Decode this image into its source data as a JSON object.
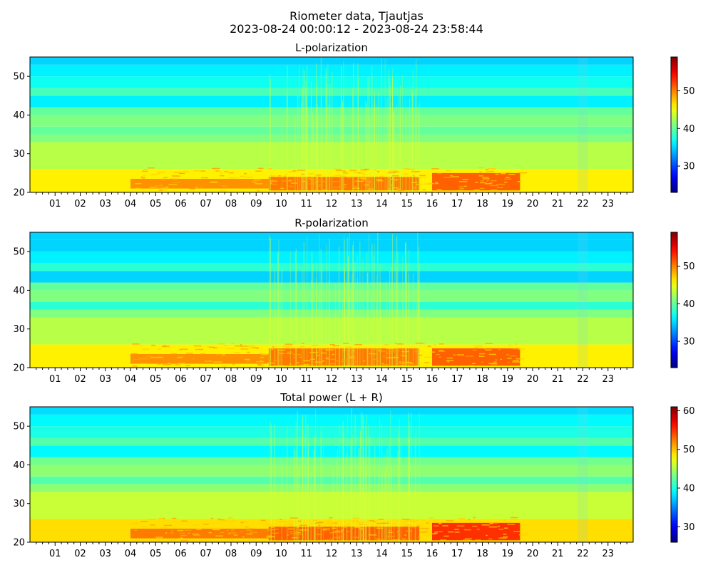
{
  "figure": {
    "title": "Riometer data, Tjautjas",
    "subtitle": "2023-08-24 00:00:12 - 2023-08-24 23:58:44"
  },
  "chart_data": [
    {
      "type": "heatmap",
      "title": "L-polarization",
      "xlabel": "",
      "ylabel": "",
      "x_tick_labels": [
        "01",
        "02",
        "03",
        "04",
        "05",
        "06",
        "07",
        "08",
        "09",
        "10",
        "11",
        "12",
        "13",
        "14",
        "15",
        "16",
        "17",
        "18",
        "19",
        "20",
        "21",
        "22",
        "23"
      ],
      "xlim_hours": [
        0,
        24
      ],
      "ylim": [
        20,
        55
      ],
      "y_ticks": [
        20,
        30,
        40,
        50
      ],
      "colormap": "jet",
      "colorbar": {
        "range": [
          23,
          59
        ],
        "ticks": [
          30,
          40,
          50
        ]
      },
      "bands": [
        {
          "y_from": 20,
          "y_to": 26,
          "value": 46
        },
        {
          "y_from": 26,
          "y_to": 33,
          "value": 43
        },
        {
          "y_from": 33,
          "y_to": 35,
          "value": 41
        },
        {
          "y_from": 35,
          "y_to": 37,
          "value": 40
        },
        {
          "y_from": 37,
          "y_to": 40,
          "value": 41
        },
        {
          "y_from": 40,
          "y_to": 42,
          "value": 40
        },
        {
          "y_from": 42,
          "y_to": 45,
          "value": 36
        },
        {
          "y_from": 45,
          "y_to": 47,
          "value": 39
        },
        {
          "y_from": 47,
          "y_to": 50,
          "value": 37
        },
        {
          "y_from": 50,
          "y_to": 53,
          "value": 36
        },
        {
          "y_from": 53,
          "y_to": 55,
          "value": 35
        }
      ],
      "enhancements": [
        {
          "x_from": 4.0,
          "x_to": 9.5,
          "y_from": 21,
          "y_to": 23.5,
          "value": 50
        },
        {
          "x_from": 9.5,
          "x_to": 15.5,
          "y_from": 20.5,
          "y_to": 24,
          "value": 51
        },
        {
          "x_from": 16.0,
          "x_to": 19.5,
          "y_from": 20.5,
          "y_to": 25,
          "value": 52
        }
      ]
    },
    {
      "type": "heatmap",
      "title": "R-polarization",
      "xlabel": "",
      "ylabel": "",
      "x_tick_labels": [
        "01",
        "02",
        "03",
        "04",
        "05",
        "06",
        "07",
        "08",
        "09",
        "10",
        "11",
        "12",
        "13",
        "14",
        "15",
        "16",
        "17",
        "18",
        "19",
        "20",
        "21",
        "22",
        "23"
      ],
      "xlim_hours": [
        0,
        24
      ],
      "ylim": [
        20,
        55
      ],
      "y_ticks": [
        20,
        30,
        40,
        50
      ],
      "colormap": "jet",
      "colorbar": {
        "range": [
          23,
          59
        ],
        "ticks": [
          30,
          40,
          50
        ]
      },
      "bands": [
        {
          "y_from": 20,
          "y_to": 26,
          "value": 46
        },
        {
          "y_from": 26,
          "y_to": 33,
          "value": 43
        },
        {
          "y_from": 33,
          "y_to": 35,
          "value": 41
        },
        {
          "y_from": 35,
          "y_to": 37,
          "value": 38
        },
        {
          "y_from": 37,
          "y_to": 40,
          "value": 41
        },
        {
          "y_from": 40,
          "y_to": 42,
          "value": 40
        },
        {
          "y_from": 42,
          "y_to": 45,
          "value": 35
        },
        {
          "y_from": 45,
          "y_to": 47,
          "value": 38
        },
        {
          "y_from": 47,
          "y_to": 50,
          "value": 36
        },
        {
          "y_from": 50,
          "y_to": 53,
          "value": 35
        },
        {
          "y_from": 53,
          "y_to": 55,
          "value": 35
        }
      ],
      "enhancements": [
        {
          "x_from": 4.0,
          "x_to": 9.5,
          "y_from": 21,
          "y_to": 23.5,
          "value": 50
        },
        {
          "x_from": 9.5,
          "x_to": 15.5,
          "y_from": 20.5,
          "y_to": 25,
          "value": 51
        },
        {
          "x_from": 16.0,
          "x_to": 19.5,
          "y_from": 20.5,
          "y_to": 25,
          "value": 52
        }
      ]
    },
    {
      "type": "heatmap",
      "title": "Total power (L + R)",
      "xlabel": "",
      "ylabel": "",
      "x_tick_labels": [
        "01",
        "02",
        "03",
        "04",
        "05",
        "06",
        "07",
        "08",
        "09",
        "10",
        "11",
        "12",
        "13",
        "14",
        "15",
        "16",
        "17",
        "18",
        "19",
        "20",
        "21",
        "22",
        "23"
      ],
      "xlim_hours": [
        0,
        24
      ],
      "ylim": [
        20,
        55
      ],
      "y_ticks": [
        20,
        30,
        40,
        50
      ],
      "colormap": "jet",
      "colorbar": {
        "range": [
          26,
          61
        ],
        "ticks": [
          30,
          40,
          50,
          60
        ]
      },
      "bands": [
        {
          "y_from": 20,
          "y_to": 26,
          "value": 49
        },
        {
          "y_from": 26,
          "y_to": 33,
          "value": 46
        },
        {
          "y_from": 33,
          "y_to": 35,
          "value": 44
        },
        {
          "y_from": 35,
          "y_to": 37,
          "value": 42
        },
        {
          "y_from": 37,
          "y_to": 40,
          "value": 44
        },
        {
          "y_from": 40,
          "y_to": 42,
          "value": 43
        },
        {
          "y_from": 42,
          "y_to": 45,
          "value": 39
        },
        {
          "y_from": 45,
          "y_to": 47,
          "value": 42
        },
        {
          "y_from": 47,
          "y_to": 50,
          "value": 40
        },
        {
          "y_from": 50,
          "y_to": 53,
          "value": 39
        },
        {
          "y_from": 53,
          "y_to": 55,
          "value": 38
        }
      ],
      "enhancements": [
        {
          "x_from": 4.0,
          "x_to": 9.5,
          "y_from": 21,
          "y_to": 23.5,
          "value": 53
        },
        {
          "x_from": 9.5,
          "x_to": 15.5,
          "y_from": 20.5,
          "y_to": 24,
          "value": 54
        },
        {
          "x_from": 16.0,
          "x_to": 19.5,
          "y_from": 20.5,
          "y_to": 25,
          "value": 56
        }
      ]
    }
  ]
}
